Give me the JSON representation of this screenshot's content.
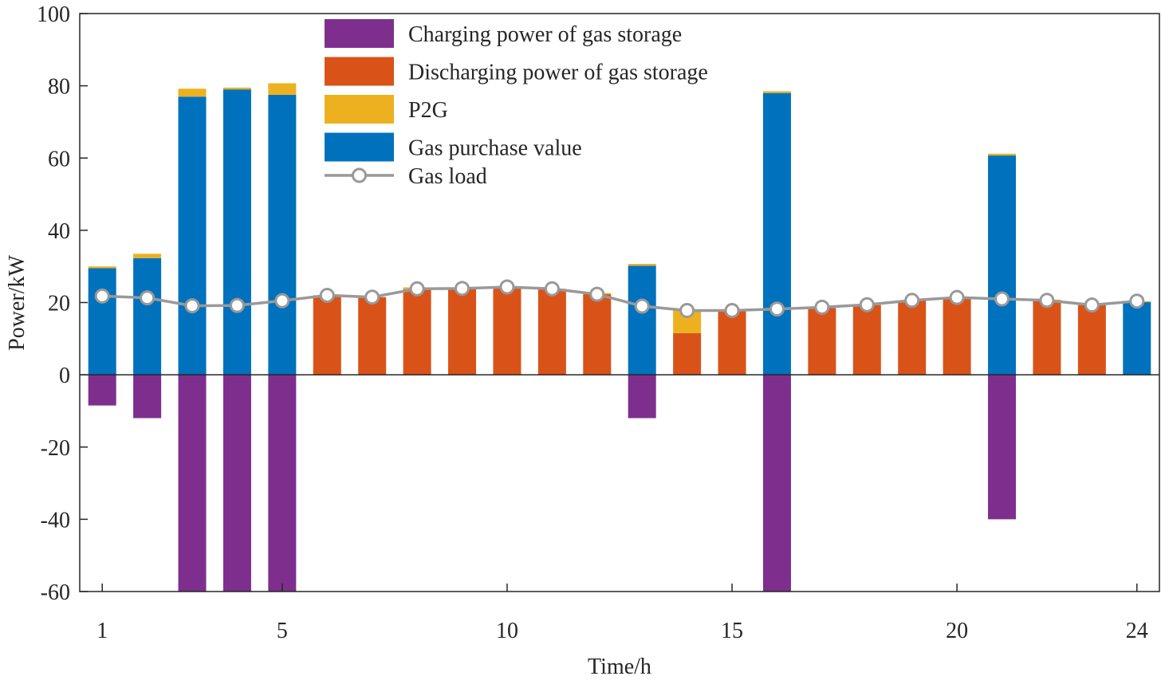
{
  "chart_data": {
    "type": "bar",
    "stacked": true,
    "xlabel": "Time/h",
    "ylabel": "Power/kW",
    "ylim": [
      -60,
      100
    ],
    "yticks": [
      -60,
      -40,
      -20,
      0,
      20,
      40,
      60,
      80,
      100
    ],
    "xlim": [
      0.5,
      24.5
    ],
    "xticks": [
      1,
      5,
      10,
      15,
      20,
      24
    ],
    "x": [
      1,
      2,
      3,
      4,
      5,
      6,
      7,
      8,
      9,
      10,
      11,
      12,
      13,
      14,
      15,
      16,
      17,
      18,
      19,
      20,
      21,
      22,
      23,
      24
    ],
    "legend_position": "top-center",
    "grid": false,
    "series": [
      {
        "name": "Charging power of gas storage",
        "kind": "bar",
        "color": "#7E2F8E",
        "values": [
          -8.5,
          -12,
          -60,
          -60,
          -60,
          0,
          0,
          0,
          0,
          0,
          0,
          0,
          -12,
          0,
          0,
          -60,
          0,
          0,
          0,
          0,
          -40,
          0,
          0,
          0
        ]
      },
      {
        "name": "Discharging power of gas storage",
        "kind": "bar",
        "color": "#D95319",
        "values": [
          0,
          0,
          0,
          0,
          0,
          22,
          21.5,
          23.7,
          23.8,
          24.2,
          23.8,
          22.3,
          0,
          11.5,
          17.8,
          0,
          18.5,
          19.3,
          20.5,
          21.3,
          0,
          20.5,
          19.3,
          0
        ]
      },
      {
        "name": "P2G",
        "kind": "bar",
        "color": "#EDB120",
        "values": [
          0.5,
          1.2,
          2.2,
          0.5,
          3.2,
          0,
          0,
          0.5,
          0,
          0,
          0,
          0.3,
          0.5,
          6.3,
          0,
          0.5,
          0,
          0,
          0,
          0,
          0.5,
          0.3,
          0,
          0.3
        ]
      },
      {
        "name": "Gas purchase value",
        "kind": "bar",
        "color": "#0072BD",
        "values": [
          29.5,
          32.3,
          77,
          79,
          77.5,
          0,
          0,
          0,
          0,
          0,
          0,
          0,
          30.2,
          0,
          0,
          78,
          0,
          0,
          0,
          0,
          60.7,
          0,
          0,
          20.1
        ]
      },
      {
        "name": "Gas load",
        "kind": "line",
        "color": "#999999",
        "marker": "circle",
        "values": [
          21.8,
          21.3,
          19.1,
          19.2,
          20.5,
          22.0,
          21.5,
          23.8,
          23.9,
          24.3,
          23.8,
          22.3,
          19.0,
          17.8,
          17.8,
          18.2,
          18.7,
          19.4,
          20.6,
          21.4,
          21.0,
          20.6,
          19.3,
          20.4
        ]
      }
    ]
  }
}
